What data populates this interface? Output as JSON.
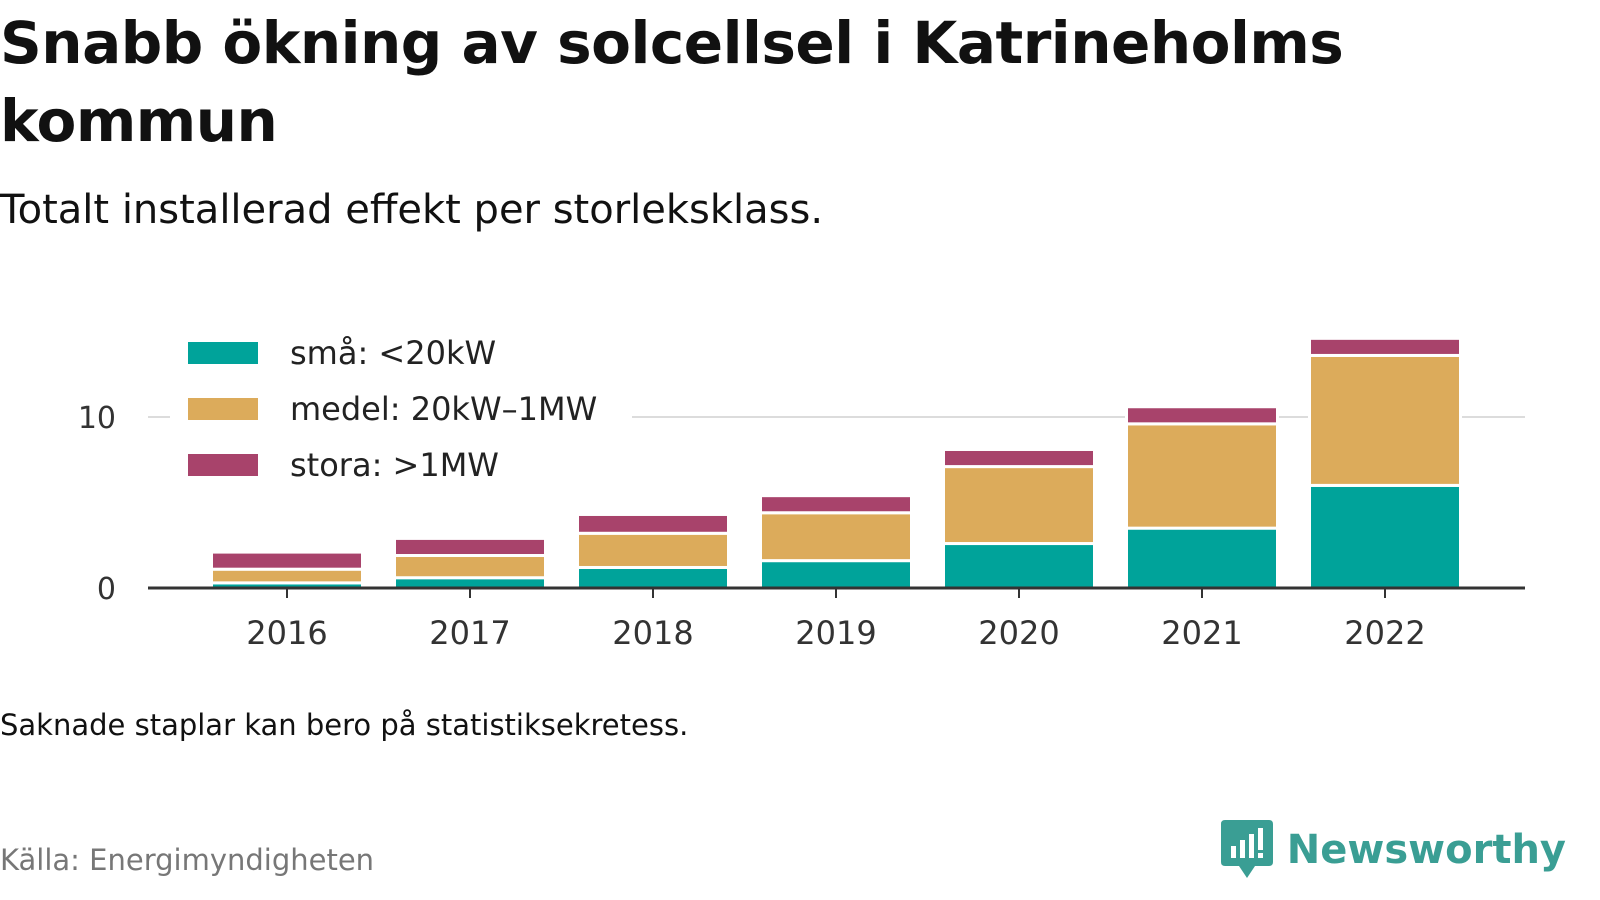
{
  "title": "Snabb ökning av solcellsel i Katrineholms kommun",
  "subtitle": "Totalt installerad effekt per storleksklass.",
  "note": "Saknade staplar kan bero på statistiksekretess.",
  "source": "Källa: Energimyndigheten",
  "brand": {
    "name": "Newsworthy",
    "logo_icon": "chart-speech-bubble-icon",
    "color": "#3a9e94"
  },
  "chart_data": {
    "type": "bar",
    "stacked": true,
    "categories": [
      "2016",
      "2017",
      "2018",
      "2019",
      "2020",
      "2021",
      "2022"
    ],
    "series": [
      {
        "name": "små: <20kW",
        "color": "#00a39a",
        "values": [
          0.3,
          0.6,
          1.2,
          1.6,
          2.6,
          3.5,
          6.0
        ]
      },
      {
        "name": "medel: 20kW–1MW",
        "color": "#dcab5b",
        "values": [
          0.8,
          1.3,
          2.0,
          2.8,
          4.5,
          6.1,
          7.6
        ]
      },
      {
        "name": "stora: >1MW",
        "color": "#a8436b",
        "values": [
          1.0,
          1.0,
          1.1,
          1.0,
          1.0,
          1.0,
          1.0
        ]
      }
    ],
    "yticks": [
      0,
      10
    ],
    "ylim": [
      0,
      15
    ],
    "xlabel": "",
    "ylabel": "",
    "grid": true,
    "legend_position": "top-left"
  }
}
